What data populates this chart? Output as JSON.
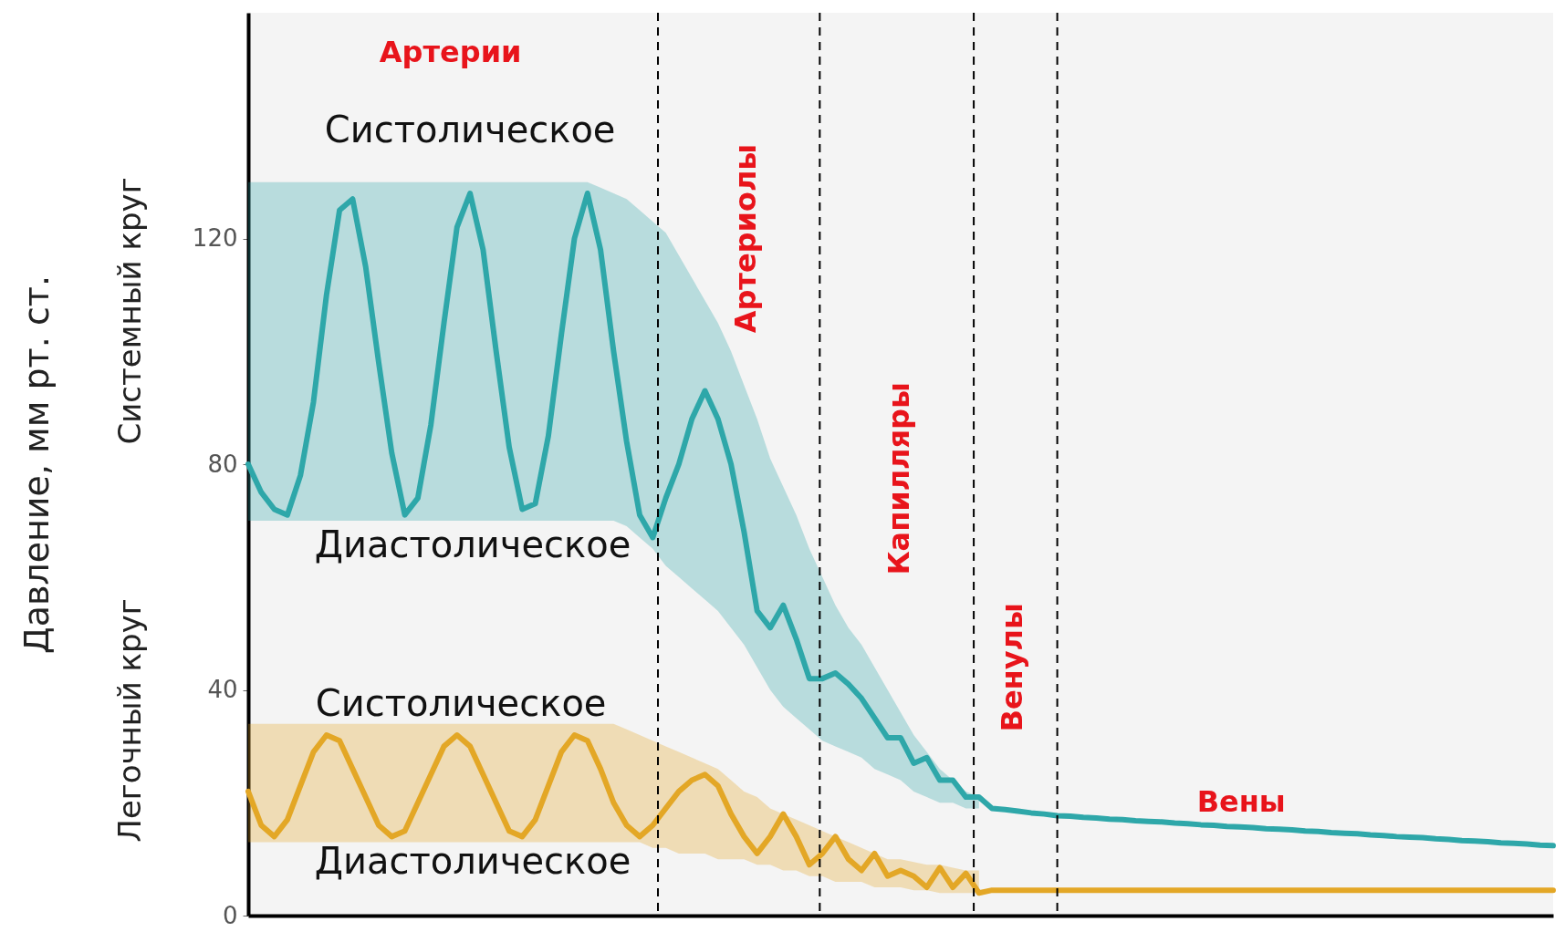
{
  "chart_data": {
    "type": "line",
    "ylabel": "Давление, мм рт. ст.",
    "ylim": [
      0,
      160
    ],
    "yticks": [
      0,
      40,
      80,
      120
    ],
    "grid": false,
    "tick_labels": "y",
    "categories": [
      null,
      null,
      null,
      null,
      null,
      null,
      null,
      null,
      null,
      null,
      null,
      null,
      null,
      null,
      null,
      null,
      null,
      null,
      null,
      null,
      null,
      null,
      null,
      null,
      null,
      null,
      null,
      null,
      null,
      null,
      null,
      null,
      null,
      null,
      null,
      null,
      null,
      null,
      null,
      null,
      null,
      null,
      null,
      null,
      null,
      null,
      null,
      null,
      null,
      null,
      null,
      null,
      null,
      null,
      null,
      null,
      null,
      null,
      null,
      null,
      null,
      null,
      null,
      null,
      null,
      null,
      null,
      null,
      null,
      null,
      null,
      null,
      null,
      null,
      null,
      null,
      null,
      null,
      null,
      null,
      null,
      null,
      null,
      null,
      null,
      null,
      null,
      null,
      null,
      null,
      null,
      null,
      null,
      null,
      null,
      null,
      null,
      null,
      null,
      null,
      null
    ],
    "series": [
      {
        "color": "#2ea7a9",
        "values": [
          80,
          75,
          72,
          71,
          78,
          91,
          110,
          125,
          127,
          115,
          98,
          82,
          71,
          74,
          87,
          105,
          122,
          128,
          118,
          100,
          83,
          72,
          73,
          85,
          103,
          120,
          128,
          118,
          100,
          84,
          71,
          67,
          74,
          80,
          88,
          93,
          88,
          80,
          68,
          54,
          51,
          55,
          49,
          42,
          42,
          43,
          41,
          38.5,
          35,
          31.5,
          31.5,
          27,
          28,
          24,
          24,
          21,
          21,
          19,
          18.8,
          18.5,
          18.2,
          18,
          17.7,
          17.6,
          17.4,
          17.3,
          17.1,
          17,
          16.8,
          16.7,
          16.6,
          16.4,
          16.3,
          16.1,
          16,
          15.8,
          15.7,
          15.6,
          15.4,
          15.3,
          15.2,
          15,
          14.9,
          14.7,
          14.6,
          14.5,
          14.3,
          14.2,
          14,
          13.9,
          13.8,
          13.6,
          13.5,
          13.3,
          13.2,
          13.1,
          12.9,
          12.8,
          12.7,
          12.5,
          12.4
        ],
        "upper": [
          130,
          130,
          130,
          130,
          130,
          130,
          130,
          130,
          130,
          130,
          130,
          130,
          130,
          130,
          130,
          130,
          130,
          130,
          130,
          130,
          130,
          130,
          130,
          130,
          130,
          130,
          130,
          129,
          128,
          127,
          125,
          123,
          121,
          117,
          113,
          109,
          105,
          100,
          94,
          88,
          81,
          76,
          71,
          65,
          60,
          55,
          51,
          48,
          44,
          40,
          36,
          32,
          29,
          26,
          24,
          22,
          21,
          null,
          null,
          null,
          null,
          null,
          null,
          null,
          null,
          null,
          null,
          null,
          null,
          null,
          null,
          null,
          null,
          null,
          null,
          null,
          null,
          null,
          null,
          null,
          null,
          null,
          null,
          null,
          null,
          null,
          null,
          null,
          null,
          null,
          null,
          null,
          null,
          null,
          null,
          null,
          null,
          null,
          null,
          null,
          null
        ],
        "lower": [
          70,
          70,
          70,
          70,
          70,
          70,
          70,
          70,
          70,
          70,
          70,
          70,
          70,
          70,
          70,
          70,
          70,
          70,
          70,
          70,
          70,
          70,
          70,
          70,
          70,
          70,
          70,
          70,
          70,
          69,
          67,
          65,
          62,
          60,
          58,
          56,
          54,
          51,
          48,
          44,
          40,
          37,
          35,
          33,
          31,
          30,
          29,
          28,
          26,
          25,
          24,
          22,
          21,
          20,
          20,
          19,
          19,
          null,
          null,
          null,
          null,
          null,
          null,
          null,
          null,
          null,
          null,
          null,
          null,
          null,
          null,
          null,
          null,
          null,
          null,
          null,
          null,
          null,
          null,
          null,
          null,
          null,
          null,
          null,
          null,
          null,
          null,
          null,
          null,
          null,
          null,
          null,
          null,
          null,
          null,
          null,
          null,
          null,
          null,
          null,
          null
        ]
      },
      {
        "color": "#e3a726",
        "values": [
          22,
          16,
          14,
          17,
          23,
          29,
          32,
          31,
          26,
          21,
          16,
          14,
          15,
          20,
          25,
          30,
          32,
          30,
          25,
          20,
          15,
          14,
          17,
          23,
          29,
          32,
          31,
          26,
          20,
          16,
          14,
          16,
          19,
          22,
          24,
          25,
          23,
          18,
          14,
          11,
          14,
          18,
          14,
          9,
          11,
          14,
          10,
          8,
          11,
          7,
          8,
          7,
          5,
          8.5,
          5,
          7.5,
          4,
          4.5,
          4.5,
          4.5,
          4.5,
          4.5,
          4.5,
          4.5,
          4.5,
          4.5,
          4.5,
          4.5,
          4.5,
          4.5,
          4.5,
          4.5,
          4.5,
          4.5,
          4.5,
          4.5,
          4.5,
          4.5,
          4.5,
          4.5,
          4.5,
          4.5,
          4.5,
          4.5,
          4.5,
          4.5,
          4.5,
          4.5,
          4.5,
          4.5,
          4.5,
          4.5,
          4.5,
          4.5,
          4.5,
          4.5,
          4.5,
          4.5,
          4.5,
          4.5,
          4.5
        ],
        "upper": [
          34,
          34,
          34,
          34,
          34,
          34,
          34,
          34,
          34,
          34,
          34,
          34,
          34,
          34,
          34,
          34,
          34,
          34,
          34,
          34,
          34,
          34,
          34,
          34,
          34,
          34,
          34,
          34,
          34,
          33,
          32,
          31,
          30,
          29,
          28,
          27,
          26,
          24,
          22,
          21,
          19,
          18,
          17,
          16,
          15,
          14,
          13,
          12,
          11,
          10,
          10,
          9.5,
          9,
          9,
          8.5,
          8,
          8,
          null,
          null,
          null,
          null,
          null,
          null,
          null,
          null,
          null,
          null,
          null,
          null,
          null,
          null,
          null,
          null,
          null,
          null,
          null,
          null,
          null,
          null,
          null,
          null,
          null,
          null,
          null,
          null,
          null,
          null,
          null,
          null,
          null,
          null,
          null,
          null,
          null,
          null,
          null,
          null,
          null,
          null,
          null,
          null
        ],
        "lower": [
          13,
          13,
          13,
          13,
          13,
          13,
          13,
          13,
          13,
          13,
          13,
          13,
          13,
          13,
          13,
          13,
          13,
          13,
          13,
          13,
          13,
          13,
          13,
          13,
          13,
          13,
          13,
          13,
          13,
          13,
          13,
          12,
          12,
          11,
          11,
          11,
          10,
          10,
          10,
          9,
          9,
          8,
          8,
          7,
          7,
          6,
          6,
          6,
          5,
          5,
          5,
          4.5,
          4.5,
          4,
          4,
          4,
          4,
          null,
          null,
          null,
          null,
          null,
          null,
          null,
          null,
          null,
          null,
          null,
          null,
          null,
          null,
          null,
          null,
          null,
          null,
          null,
          null,
          null,
          null,
          null,
          null,
          null,
          null,
          null,
          null,
          null,
          null,
          null,
          null,
          null,
          null,
          null,
          null,
          null,
          null,
          null,
          null,
          null,
          null,
          null,
          null
        ]
      }
    ],
    "annotations": [
      "Артерии",
      "Артериолы",
      "Капилляры",
      "Венулы",
      "Вены",
      "Систолическое",
      "Диастолическое",
      "Систолическое",
      "Диастолическое",
      "Системный круг",
      "Легочный круг"
    ]
  }
}
